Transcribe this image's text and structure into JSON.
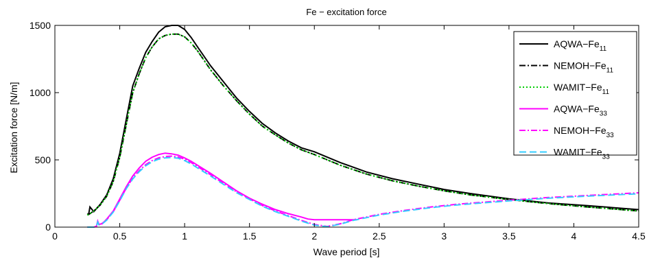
{
  "chart_data": {
    "type": "line",
    "title": "Fe − excitation force",
    "xlabel": "Wave period [s]",
    "ylabel": "Excitation force [N/m]",
    "xlim": [
      0,
      4.5
    ],
    "ylim": [
      0,
      1500
    ],
    "xticks": [
      0,
      0.5,
      1,
      1.5,
      2,
      2.5,
      3,
      3.5,
      4,
      4.5
    ],
    "xtick_labels": [
      "0",
      "0.5",
      "1",
      "1.5",
      "2",
      "2.5",
      "3",
      "3.5",
      "4",
      "4.5"
    ],
    "yticks": [
      0,
      500,
      1000,
      1500
    ],
    "ytick_labels": [
      "0",
      "500",
      "1000",
      "1500"
    ],
    "grid": false,
    "legend_position": "top-right",
    "series": [
      {
        "name": "AQWA−Fe",
        "name_subscript": "11",
        "color": "#000000",
        "dash": "solid",
        "x": [
          0.25,
          0.26,
          0.27,
          0.3,
          0.35,
          0.4,
          0.45,
          0.5,
          0.55,
          0.6,
          0.65,
          0.7,
          0.75,
          0.8,
          0.85,
          0.9,
          0.95,
          1.0,
          1.05,
          1.1,
          1.2,
          1.3,
          1.4,
          1.5,
          1.6,
          1.7,
          1.8,
          1.9,
          2.0,
          2.2,
          2.4,
          2.6,
          2.8,
          3.0,
          3.2,
          3.5,
          3.8,
          4.1,
          4.5
        ],
        "y": [
          100,
          95,
          150,
          115,
          170,
          240,
          360,
          550,
          800,
          1050,
          1180,
          1300,
          1380,
          1450,
          1490,
          1500,
          1500,
          1470,
          1410,
          1340,
          1200,
          1080,
          960,
          860,
          770,
          700,
          640,
          590,
          560,
          480,
          410,
          360,
          320,
          280,
          250,
          210,
          180,
          160,
          130
        ]
      },
      {
        "name": "NEMOH−Fe",
        "name_subscript": "11",
        "color": "#000000",
        "dash": "dashdot",
        "x": [
          0.25,
          0.27,
          0.3,
          0.35,
          0.4,
          0.45,
          0.5,
          0.55,
          0.6,
          0.65,
          0.7,
          0.75,
          0.8,
          0.85,
          0.9,
          0.95,
          1.0,
          1.05,
          1.1,
          1.2,
          1.3,
          1.4,
          1.5,
          1.6,
          1.7,
          1.8,
          1.9,
          2.0,
          2.2,
          2.4,
          2.6,
          2.8,
          3.0,
          3.2,
          3.5,
          3.8,
          4.1,
          4.5
        ],
        "y": [
          90,
          100,
          120,
          165,
          230,
          340,
          520,
          760,
          1000,
          1140,
          1260,
          1340,
          1400,
          1425,
          1435,
          1435,
          1415,
          1370,
          1310,
          1170,
          1050,
          940,
          840,
          750,
          685,
          625,
          575,
          540,
          460,
          395,
          345,
          305,
          270,
          240,
          205,
          175,
          150,
          120
        ]
      },
      {
        "name": "WAMIT−Fe",
        "name_subscript": "11",
        "color": "#00cc00",
        "dash": "dotted",
        "x": [
          0.25,
          0.27,
          0.3,
          0.35,
          0.4,
          0.45,
          0.5,
          0.55,
          0.6,
          0.65,
          0.7,
          0.75,
          0.8,
          0.85,
          0.9,
          0.95,
          1.0,
          1.05,
          1.1,
          1.2,
          1.3,
          1.4,
          1.5,
          1.6,
          1.7,
          1.8,
          1.9,
          2.0,
          2.2,
          2.4,
          2.6,
          2.8,
          3.0,
          3.2,
          3.5,
          3.8,
          4.1,
          4.5
        ],
        "y": [
          90,
          100,
          120,
          165,
          230,
          340,
          520,
          760,
          1000,
          1140,
          1260,
          1340,
          1400,
          1425,
          1435,
          1435,
          1415,
          1370,
          1310,
          1170,
          1050,
          940,
          840,
          750,
          685,
          625,
          575,
          540,
          460,
          395,
          345,
          305,
          270,
          240,
          205,
          175,
          150,
          120
        ]
      },
      {
        "name": "AQWA−Fe",
        "name_subscript": "33",
        "color": "#ff00ff",
        "dash": "solid",
        "x": [
          0.25,
          0.3,
          0.32,
          0.33,
          0.34,
          0.36,
          0.38,
          0.4,
          0.45,
          0.5,
          0.55,
          0.6,
          0.65,
          0.7,
          0.75,
          0.8,
          0.85,
          0.9,
          0.95,
          1.0,
          1.05,
          1.1,
          1.2,
          1.3,
          1.4,
          1.5,
          1.6,
          1.7,
          1.8,
          1.9,
          1.95,
          2.0,
          2.1,
          2.2,
          2.3,
          2.33
        ],
        "y": [
          0,
          0,
          5,
          45,
          20,
          25,
          40,
          60,
          120,
          210,
          300,
          380,
          440,
          490,
          520,
          540,
          550,
          545,
          535,
          515,
          490,
          460,
          400,
          335,
          270,
          215,
          170,
          130,
          100,
          75,
          60,
          55,
          55,
          55,
          55,
          55
        ]
      },
      {
        "name": "NEMOH−Fe",
        "name_subscript": "33",
        "color": "#ff00ff",
        "dash": "dashdot",
        "x": [
          0.25,
          0.3,
          0.32,
          0.33,
          0.34,
          0.36,
          0.38,
          0.4,
          0.45,
          0.5,
          0.55,
          0.6,
          0.65,
          0.7,
          0.75,
          0.8,
          0.85,
          0.9,
          0.95,
          1.0,
          1.05,
          1.1,
          1.2,
          1.3,
          1.4,
          1.5,
          1.6,
          1.7,
          1.8,
          1.9,
          2.0,
          2.1,
          2.2,
          2.3,
          2.5,
          2.7,
          2.9,
          3.1,
          3.3,
          3.5,
          3.8,
          4.1,
          4.5
        ],
        "y": [
          0,
          0,
          5,
          40,
          18,
          22,
          38,
          55,
          115,
          200,
          290,
          365,
          420,
          465,
          495,
          515,
          525,
          528,
          522,
          505,
          480,
          450,
          390,
          325,
          262,
          210,
          160,
          120,
          85,
          50,
          20,
          5,
          25,
          55,
          95,
          125,
          150,
          170,
          185,
          200,
          220,
          235,
          255
        ]
      },
      {
        "name": "WAMIT−Fe",
        "name_subscript": "33",
        "color": "#33ccff",
        "dash": "dashed",
        "x": [
          0.25,
          0.3,
          0.32,
          0.33,
          0.34,
          0.36,
          0.38,
          0.4,
          0.45,
          0.5,
          0.55,
          0.6,
          0.65,
          0.7,
          0.75,
          0.8,
          0.85,
          0.9,
          0.95,
          1.0,
          1.05,
          1.1,
          1.2,
          1.3,
          1.4,
          1.5,
          1.6,
          1.7,
          1.8,
          1.9,
          2.0,
          2.1,
          2.2,
          2.3,
          2.5,
          2.7,
          2.9,
          3.1,
          3.3,
          3.5,
          3.8,
          4.1,
          4.5
        ],
        "y": [
          0,
          0,
          5,
          38,
          17,
          21,
          36,
          52,
          112,
          196,
          285,
          358,
          412,
          456,
          486,
          505,
          515,
          518,
          512,
          495,
          470,
          440,
          380,
          318,
          256,
          205,
          155,
          115,
          80,
          45,
          15,
          3,
          22,
          50,
          90,
          120,
          145,
          165,
          180,
          195,
          215,
          230,
          248
        ]
      }
    ]
  }
}
